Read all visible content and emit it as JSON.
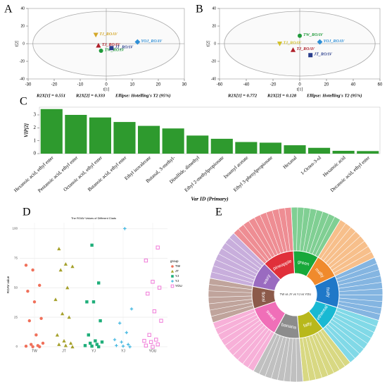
{
  "chart_data": [
    {
      "type": "scatter",
      "panel": "A",
      "x_label": "t[1]",
      "y_label": "t[2]",
      "xlim": [
        -30,
        30
      ],
      "xticks": [
        -30,
        -20,
        -10,
        0,
        10,
        20,
        30
      ],
      "ylim": [
        -40,
        40
      ],
      "yticks": [
        -40,
        -20,
        0,
        20,
        40
      ],
      "points": [
        {
          "label": "TJ_ROAV",
          "x": -4,
          "y": 10,
          "color": "#d4a82a",
          "marker": "triangle-down"
        },
        {
          "label": "YOJ_ROAV",
          "x": 12,
          "y": 2,
          "color": "#2f8fd6",
          "marker": "diamond"
        },
        {
          "label": "TJ_ROAV",
          "x": -3,
          "y": -2,
          "color": "#b0202a",
          "marker": "triangle"
        },
        {
          "label": "TW_ROAV",
          "x": -2,
          "y": -8,
          "color": "#1f9a3a",
          "marker": "circle"
        },
        {
          "label": "JT_ROAV",
          "x": 2,
          "y": -5,
          "color": "#2a3e8c",
          "marker": "square"
        }
      ],
      "annotations": [
        "R2X[1] = 0.551",
        "R2X[2] = 0.333",
        "Ellipse: Hotelling's T2 (95%)"
      ]
    },
    {
      "type": "scatter",
      "panel": "B",
      "x_label": "t[1]",
      "y_label": "t[2]",
      "xlim": [
        -60,
        60
      ],
      "xticks": [
        -60,
        -40,
        -20,
        0,
        20,
        40,
        60
      ],
      "ylim": [
        -40,
        40
      ],
      "yticks": [
        -40,
        -20,
        0,
        20,
        40
      ],
      "points": [
        {
          "label": "TW_ROAV",
          "x": 0,
          "y": 9,
          "color": "#1f9a3a",
          "marker": "circle"
        },
        {
          "label": "YOJ_ROAV",
          "x": 15,
          "y": 2,
          "color": "#2f8fd6",
          "marker": "diamond"
        },
        {
          "label": "TJ_ROAV",
          "x": -15,
          "y": 0,
          "color": "#d4c22a",
          "marker": "triangle-down"
        },
        {
          "label": "TJ_ROAV",
          "x": -5,
          "y": -7,
          "color": "#b0202a",
          "marker": "triangle"
        },
        {
          "label": "JT_ROAV",
          "x": 8,
          "y": -13,
          "color": "#2a3e8c",
          "marker": "square"
        }
      ],
      "annotations": [
        "R2X[1] = 0.772",
        "R2X[2] = 0.128",
        "Ellipse: Hotelling's T2 (95%)"
      ]
    },
    {
      "type": "bar",
      "panel": "C",
      "x_label": "Var ID (Primary)",
      "y_label": "VIP[2]",
      "color": "#2e9a2e",
      "categories": [
        "Hexanoic acid, ethyl ester",
        "Pentanoic acid, ethyl ester",
        "Octanoic acid, ethyl ester",
        "Butanoic acid, ethyl ester",
        "Ethyl isovalerate",
        "Butanal, 3-methyl-",
        "Disulfide, dimethyl",
        "Ethyl 2-methylpropionate",
        "Isoamyl acetate",
        "Ethyl 3-phenylpropionate",
        "Hexanal",
        "1-Octen-3-ol",
        "Hexanoic acid",
        "Decanoic acid, ethyl ester"
      ],
      "values": [
        3.45,
        3.0,
        2.8,
        2.45,
        2.15,
        1.95,
        1.4,
        1.15,
        0.9,
        0.85,
        0.65,
        0.45,
        0.22,
        0.2
      ],
      "ylim": [
        0,
        3.6
      ],
      "yticks": [
        0,
        1,
        2,
        3
      ]
    },
    {
      "type": "strip",
      "panel": "D",
      "title": "The ROAV Values of Different Clads",
      "y_label": "ROAV value",
      "legend_title": "group",
      "categories": [
        "TW",
        "JT",
        "YJ",
        "YJ",
        "YOU"
      ],
      "ylim": [
        0,
        105
      ],
      "yticks": [
        0,
        25,
        50,
        75,
        100
      ],
      "grid": true,
      "series": [
        {
          "name": "TW",
          "color": "#f0705a",
          "marker": "circle",
          "values": [
            69,
            65,
            52,
            47,
            38,
            24,
            22,
            10,
            3,
            2,
            1,
            0.5,
            0,
            0
          ]
        },
        {
          "name": "JT",
          "color": "#a5a02a",
          "marker": "triangle",
          "values": [
            83,
            70,
            68,
            65,
            50,
            40,
            28,
            25,
            10,
            5,
            3,
            2,
            1,
            0
          ]
        },
        {
          "name": "YJ",
          "color": "#1fae7a",
          "marker": "square",
          "values": [
            86,
            54,
            38,
            38,
            22,
            10,
            5,
            4,
            3,
            2,
            1,
            0.5,
            0
          ]
        },
        {
          "name": "YJ",
          "color": "#3fb6e0",
          "marker": "plus",
          "values": [
            100,
            32,
            20,
            12,
            6,
            4,
            2,
            1,
            0.5,
            0
          ]
        },
        {
          "name": "YOU",
          "color": "#f07ad8",
          "marker": "open-square",
          "values": [
            84,
            73,
            55,
            50,
            45,
            30,
            22,
            10,
            6,
            5,
            4,
            2,
            1,
            0
          ]
        }
      ]
    },
    {
      "type": "sunburst",
      "panel": "E",
      "center_text": "TW vs JY vs YJ vs YOU",
      "categories": [
        "green",
        "malty",
        "fruity",
        "ethereal",
        "fatty",
        "banana",
        "sweet",
        "floral",
        "waxy",
        "pineapple"
      ],
      "values": [
        8,
        8,
        10,
        8,
        8,
        8,
        10,
        7,
        8,
        10
      ],
      "colors": [
        "#18a83a",
        "#f08a2c",
        "#1f78c8",
        "#19b9d3",
        "#b8b81c",
        "#8c8c8c",
        "#f06fb8",
        "#8c5a4a",
        "#9a6bc0",
        "#e0303a"
      ]
    }
  ]
}
